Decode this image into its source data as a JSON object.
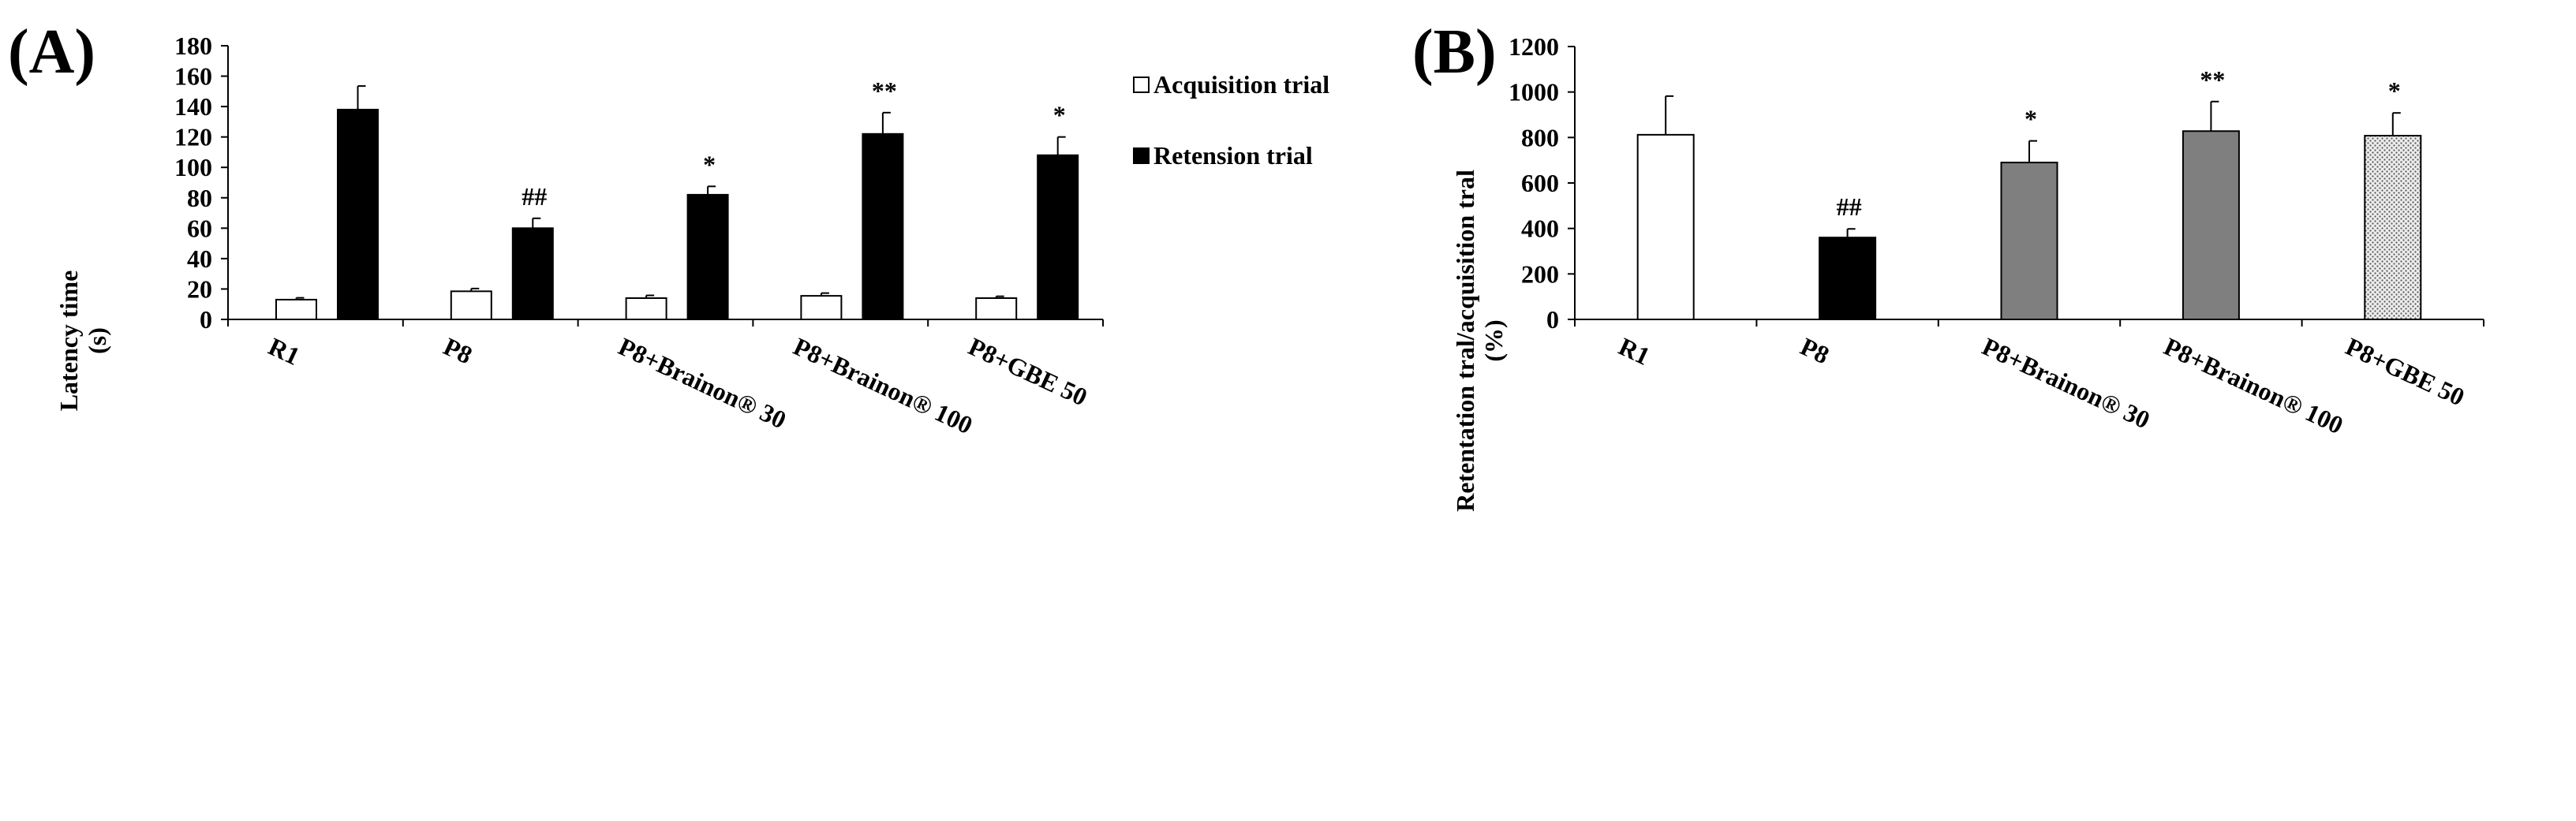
{
  "colors": {
    "acquisition": "#ffffff",
    "retension": "#000000",
    "treated_gray": "#7f7f7f",
    "dotted_fill": "#e8e8e8",
    "stroke": "#000000"
  },
  "chart_data": [
    {
      "panel": "(A)",
      "type": "bar",
      "title": "",
      "xlabel": "",
      "ylabel": "Latency time",
      "ylabel_unit": "(s)",
      "ylim": [
        0,
        180
      ],
      "yticks": [
        0,
        20,
        40,
        60,
        80,
        100,
        120,
        140,
        160,
        180
      ],
      "grid": false,
      "legend_position": "top-right",
      "categories": [
        "R1",
        "P8",
        "P8+Brainon® 30",
        "P8+Brainon® 100",
        "P8+GBE 50"
      ],
      "series": [
        {
          "name": "Acquisition trial",
          "fill": "white",
          "values": [
            13,
            18.5,
            14,
            15.5,
            14
          ],
          "errors": [
            1.2,
            1.8,
            1.8,
            1.8,
            1.2
          ],
          "annotations": [
            "",
            "",
            "",
            "",
            ""
          ]
        },
        {
          "name": "Retension trial",
          "fill": "black",
          "values": [
            138,
            60,
            82,
            122,
            108
          ],
          "errors": [
            15.5,
            6.5,
            5.5,
            14,
            12
          ],
          "annotations": [
            "",
            "##",
            "*",
            "**",
            "*"
          ]
        }
      ]
    },
    {
      "panel": "(B)",
      "type": "bar",
      "title": "",
      "xlabel": "",
      "ylabel": "Retentation tral/acquisition tral",
      "ylabel_unit": "(%)",
      "ylim": [
        0,
        1200
      ],
      "yticks": [
        0,
        200,
        400,
        600,
        800,
        1000,
        1200
      ],
      "grid": false,
      "categories": [
        "R1",
        "P8",
        "P8+Brainon® 30",
        "P8+Brainon® 100",
        "P8+GBE 50"
      ],
      "values": [
        812,
        360,
        690,
        828,
        808
      ],
      "errors": [
        170,
        38,
        95,
        130,
        100
      ],
      "fills": [
        "white",
        "black",
        "gray",
        "gray",
        "dotted"
      ],
      "annotations": [
        "",
        "##",
        "*",
        "**",
        "*"
      ]
    }
  ]
}
